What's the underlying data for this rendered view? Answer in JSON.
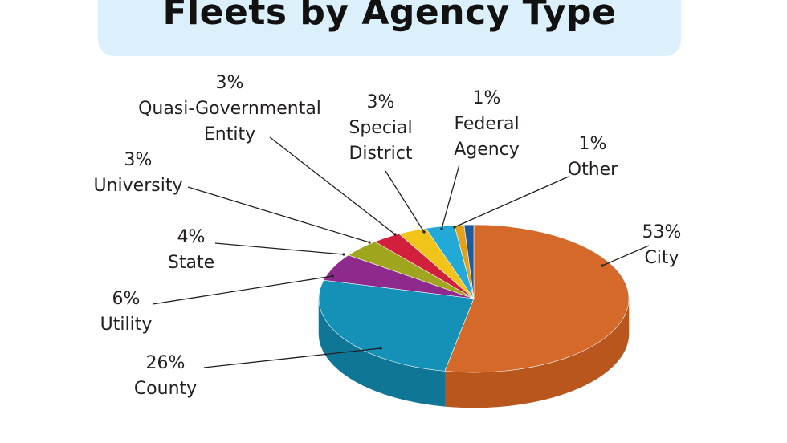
{
  "chart_data": {
    "type": "pie",
    "title": "Fleets by Agency Type",
    "three_d": true,
    "slices": [
      {
        "label": "City",
        "value": 53,
        "value_label": "53%",
        "color": "#d4692a",
        "side_color": "#b9561d"
      },
      {
        "label": "County",
        "value": 26,
        "value_label": "26%",
        "color": "#1591b7",
        "side_color": "#0f7696"
      },
      {
        "label": "Utility",
        "value": 6,
        "value_label": "6%",
        "color": "#8e2a8b",
        "side_color": "#6e1f6c"
      },
      {
        "label": "State",
        "value": 4,
        "value_label": "4%",
        "color": "#9fa51d",
        "side_color": "#7f8416"
      },
      {
        "label": "University",
        "value": 3,
        "value_label": "3%",
        "color": "#d21f3c",
        "side_color": "#a8172f"
      },
      {
        "label": "Quasi-Governmental Entity",
        "value": 3,
        "value_label": "3%",
        "color": "#f0c419",
        "side_color": "#c79f0f"
      },
      {
        "label": "Special District",
        "value": 3,
        "value_label": "3%",
        "color": "#22a9d8",
        "side_color": "#1887ad"
      },
      {
        "label": "Federal Agency",
        "value": 1,
        "value_label": "1%",
        "color": "#e3a21a",
        "side_color": "#b88212"
      },
      {
        "label": "Other",
        "value": 1,
        "value_label": "1%",
        "color": "#1e5a9c",
        "side_color": "#17467b"
      }
    ]
  }
}
